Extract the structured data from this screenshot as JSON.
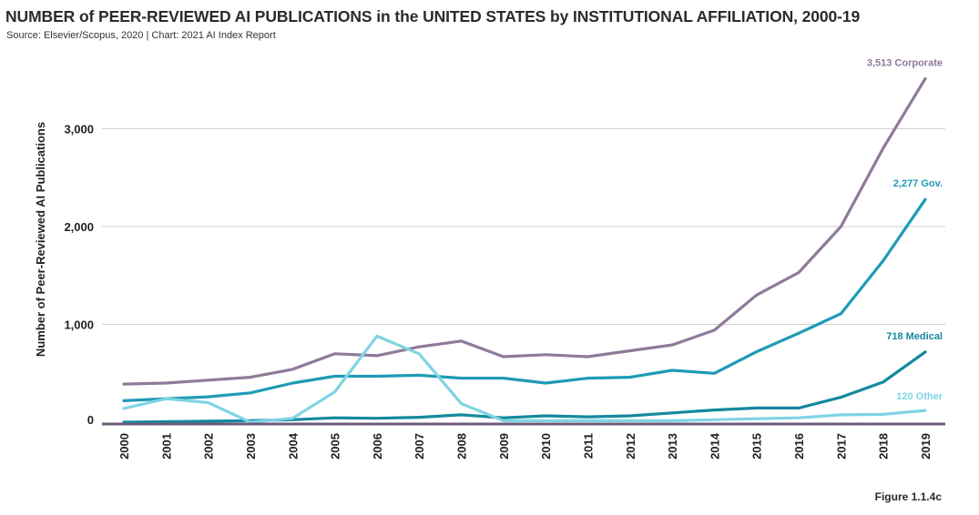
{
  "header": {
    "title": "NUMBER of PEER-REVIEWED AI PUBLICATIONS in the UNITED STATES by INSTITUTIONAL AFFILIATION, 2000-19",
    "source": "Source: Elsevier/Scopus, 2020 | Chart: 2021 AI Index Report"
  },
  "figure_label": "Figure 1.1.4c",
  "chart_data": {
    "type": "line",
    "title": "NUMBER of PEER-REVIEWED AI PUBLICATIONS in the UNITED STATES by INSTITUTIONAL AFFILIATION, 2000-19",
    "xlabel": "",
    "ylabel": "Number of Peer-Reviewed AI Publications",
    "ylim": [
      0,
      3600
    ],
    "yticks": [
      0,
      1000,
      2000,
      3000
    ],
    "ytick_labels": [
      "0",
      "1,000",
      "2,000",
      "3,000"
    ],
    "grid": true,
    "x": [
      "2000",
      "2001",
      "2002",
      "2003",
      "2004",
      "2005",
      "2006",
      "2007",
      "2008",
      "2009",
      "2010",
      "2011",
      "2012",
      "2013",
      "2014",
      "2015",
      "2016",
      "2017",
      "2018",
      "2019"
    ],
    "series": [
      {
        "name": "Corporate",
        "color": "#8e7a99",
        "end_label": "3,513 Corporate",
        "values": [
          390,
          400,
          430,
          460,
          540,
          700,
          680,
          770,
          830,
          670,
          690,
          670,
          730,
          790,
          940,
          1300,
          1530,
          2000,
          2800,
          3513
        ]
      },
      {
        "name": "Gov.",
        "color": "#1e9bb5",
        "end_label": "2,277 Gov.",
        "values": [
          220,
          240,
          260,
          300,
          400,
          470,
          470,
          480,
          450,
          450,
          400,
          450,
          460,
          530,
          500,
          720,
          910,
          1110,
          1650,
          2277
        ]
      },
      {
        "name": "Medical",
        "color": "#13899e",
        "end_label": "718 Medical",
        "values": [
          0,
          5,
          10,
          15,
          25,
          45,
          40,
          50,
          75,
          45,
          65,
          55,
          65,
          95,
          125,
          145,
          145,
          255,
          410,
          718
        ]
      },
      {
        "name": "Other",
        "color": "#7fd4e3",
        "end_label": "120 Other",
        "values": [
          140,
          240,
          200,
          0,
          40,
          310,
          880,
          700,
          190,
          15,
          15,
          15,
          15,
          15,
          25,
          35,
          45,
          75,
          80,
          120
        ]
      }
    ]
  }
}
